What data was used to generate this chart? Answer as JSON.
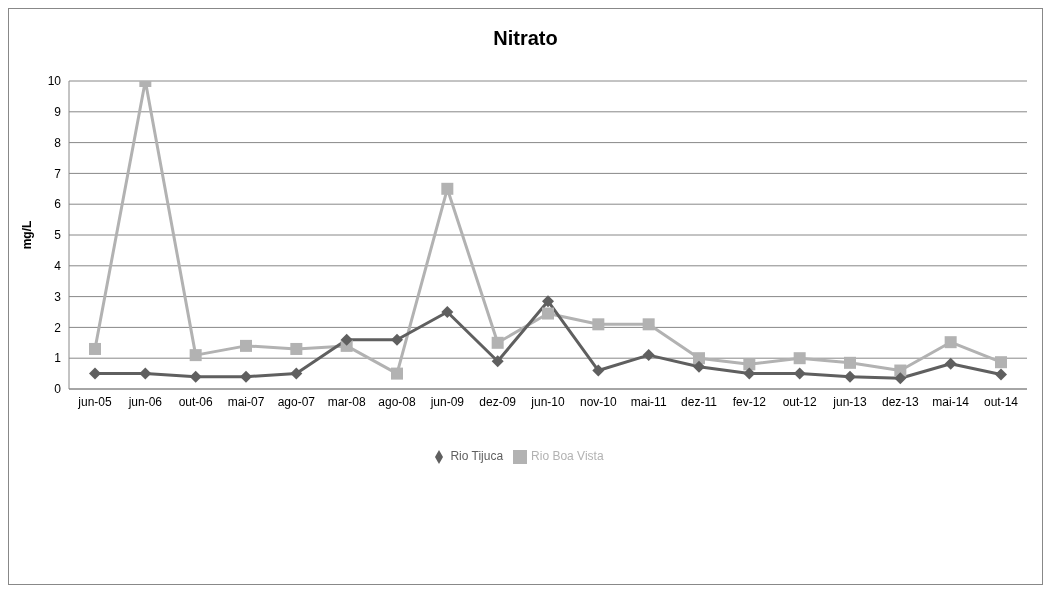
{
  "chart_data": {
    "type": "line",
    "title": "Nitrato",
    "ylabel": "mg/L",
    "categories": [
      "jun-05",
      "jun-06",
      "out-06",
      "mai-07",
      "ago-07",
      "mar-08",
      "ago-08",
      "jun-09",
      "dez-09",
      "jun-10",
      "nov-10",
      "mai-11",
      "dez-11",
      "fev-12",
      "out-12",
      "jun-13",
      "dez-13",
      "mai-14",
      "out-14"
    ],
    "series": [
      {
        "name": "Rio Tijuca",
        "color": "#5f5f5f",
        "marker": "diamond",
        "values": [
          0.5,
          0.5,
          0.4,
          0.4,
          0.5,
          1.6,
          1.6,
          2.5,
          0.9,
          2.85,
          0.6,
          1.1,
          0.72,
          0.5,
          0.5,
          0.4,
          0.35,
          0.82,
          0.47
        ]
      },
      {
        "name": "Rio Boa Vista",
        "color": "#b2b2b2",
        "marker": "square",
        "values": [
          1.3,
          10,
          1.1,
          1.4,
          1.3,
          1.4,
          0.5,
          6.5,
          1.5,
          2.45,
          2.1,
          2.1,
          1.0,
          0.8,
          1.0,
          0.85,
          0.6,
          1.52,
          0.87
        ]
      }
    ],
    "ylim": [
      0,
      10
    ],
    "yticks": [
      0,
      1,
      2,
      3,
      4,
      5,
      6,
      7,
      8,
      9,
      10
    ],
    "grid": "y",
    "legend": "bottom"
  }
}
